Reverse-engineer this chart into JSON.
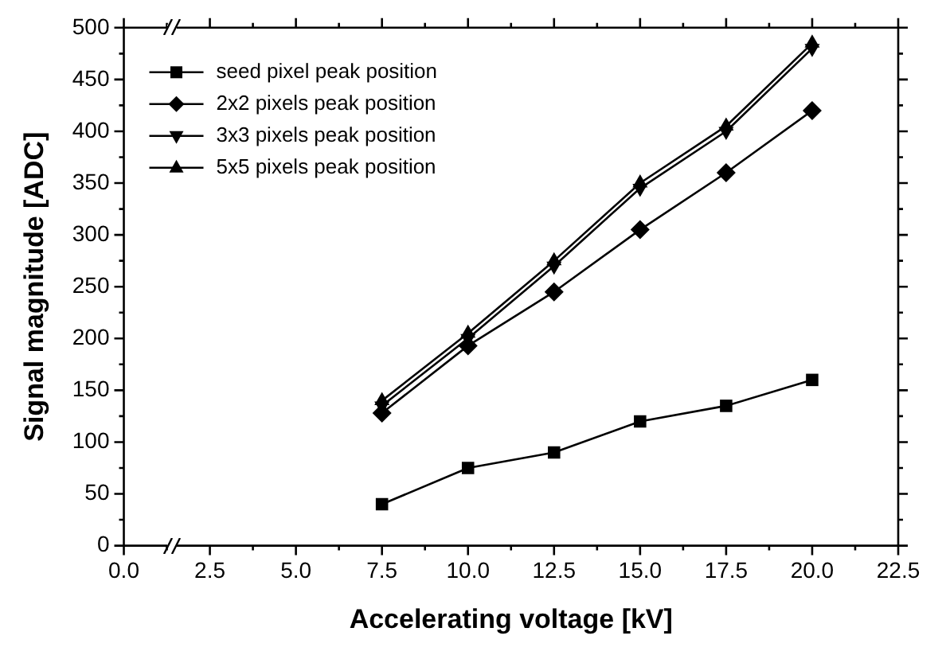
{
  "chart_data": {
    "type": "line",
    "xlabel": "Accelerating voltage [kV]",
    "ylabel": "Signal magnitude [ADC]",
    "x": [
      7.5,
      10,
      12.5,
      15,
      17.5,
      20
    ],
    "series": [
      {
        "name": "seed pixel peak position",
        "color": "#000000",
        "marker": "square",
        "values": [
          40,
          75,
          90,
          120,
          135,
          160
        ]
      },
      {
        "name": "2x2 pixels peak position",
        "color": "#000000",
        "marker": "diamond",
        "values": [
          128,
          193,
          245,
          305,
          360,
          420
        ]
      },
      {
        "name": "3x3 pixels peak position",
        "color": "#000000",
        "marker": "triangle-down",
        "values": [
          135,
          200,
          270,
          345,
          400,
          480
        ]
      },
      {
        "name": "5x5 pixels peak position",
        "color": "#000000",
        "marker": "triangle",
        "values": [
          140,
          205,
          275,
          350,
          405,
          485
        ]
      }
    ],
    "xlim": [
      0,
      22.5
    ],
    "xticks": [
      {
        "value": 0,
        "label": "0.0"
      },
      {
        "value": 1.25,
        "label": null
      },
      {
        "value": 2.5,
        "label": "2.5"
      },
      {
        "value": 3.75,
        "label": null
      },
      {
        "value": 5,
        "label": "5.0"
      },
      {
        "value": 6.25,
        "label": null
      },
      {
        "value": 7.5,
        "label": "7.5"
      },
      {
        "value": 8.75,
        "label": null
      },
      {
        "value": 10,
        "label": "10.0"
      },
      {
        "value": 11.25,
        "label": null
      },
      {
        "value": 12.5,
        "label": "12.5"
      },
      {
        "value": 13.75,
        "label": null
      },
      {
        "value": 15,
        "label": "15.0"
      },
      {
        "value": 16.25,
        "label": null
      },
      {
        "value": 17.5,
        "label": "17.5"
      },
      {
        "value": 18.75,
        "label": null
      },
      {
        "value": 20,
        "label": "20.0"
      },
      {
        "value": 21.25,
        "label": null
      },
      {
        "value": 22.5,
        "label": "22.5"
      }
    ],
    "ylim": [
      0,
      500
    ],
    "yticks": [
      0,
      {
        "value": 25,
        "label": null
      },
      50,
      {
        "value": 75,
        "label": null
      },
      100,
      {
        "value": 125,
        "label": null
      },
      150,
      {
        "value": 175,
        "label": null
      },
      200,
      {
        "value": 225,
        "label": null
      },
      250,
      {
        "value": 275,
        "label": null
      },
      300,
      {
        "value": 325,
        "label": null
      },
      350,
      {
        "value": 375,
        "label": null
      },
      400,
      {
        "value": 425,
        "label": null
      },
      450,
      {
        "value": 475,
        "label": null
      },
      500
    ],
    "legend": "top left",
    "grid": false,
    "line_style": "solid"
  }
}
